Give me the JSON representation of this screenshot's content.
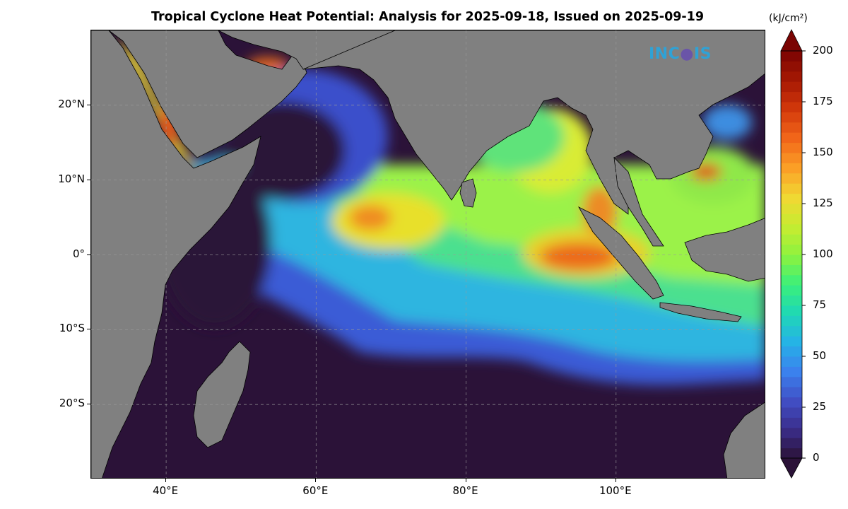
{
  "title": "Tropical Cyclone Heat Potential: Analysis for 2025-09-18, Issued on 2025-09-19",
  "logo_text": "INCOIS",
  "colorbar": {
    "unit": "(kJ/cm²)",
    "min": 0,
    "max": 200,
    "tick_labels": [
      "0",
      "25",
      "50",
      "75",
      "100",
      "125",
      "150",
      "175",
      "200"
    ],
    "extend": "both"
  },
  "map": {
    "lon_range": [
      30,
      120
    ],
    "lat_range": [
      -30,
      30
    ],
    "lat_labels": [
      "20°N",
      "10°N",
      "0°",
      "10°S",
      "20°S"
    ],
    "lon_labels": [
      "40°E",
      "60°E",
      "80°E",
      "100°E"
    ],
    "gridlines": true,
    "land_color": "#808080",
    "low_value_color": "#2b1238"
  }
}
